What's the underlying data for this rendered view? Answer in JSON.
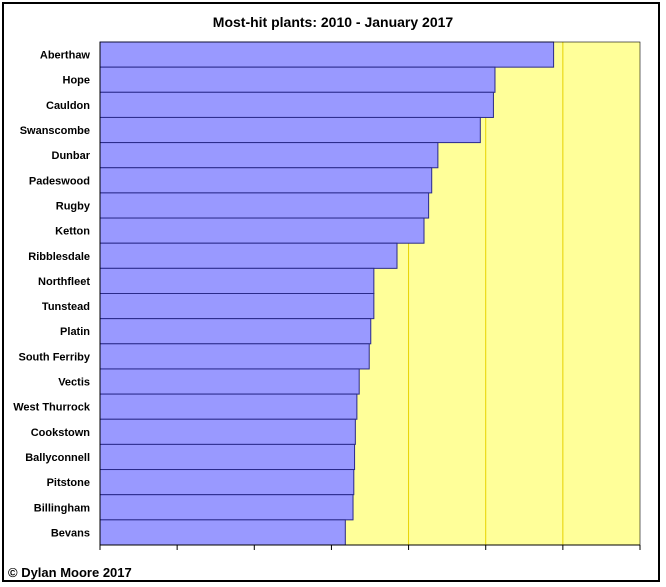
{
  "chart_data": {
    "type": "bar",
    "orientation": "horizontal",
    "title": "Most-hit plants: 2010 - January 2017",
    "categories": [
      "Aberthaw",
      "Hope",
      "Cauldon",
      "Swanscombe",
      "Dunbar",
      "Padeswood",
      "Rugby",
      "Ketton",
      "Ribblesdale",
      "Northfleet",
      "Tunstead",
      "Platin",
      "South Ferriby",
      "Vectis",
      "West Thurrock",
      "Cookstown",
      "Ballyconnell",
      "Pitstone",
      "Billingham",
      "Bevans"
    ],
    "values": [
      58.8,
      51.2,
      51.0,
      49.3,
      43.8,
      43.0,
      42.6,
      42.0,
      38.5,
      35.5,
      35.5,
      35.1,
      34.9,
      33.6,
      33.3,
      33.1,
      33.0,
      32.9,
      32.8,
      31.8
    ],
    "xlim": [
      0,
      70
    ],
    "xticks": [
      0,
      10,
      20,
      30,
      40,
      50,
      60,
      70
    ],
    "tick_labels_shown": false,
    "grid": true,
    "bar_color": "#9999ff",
    "plot_bg": "#ffff99",
    "grid_color": "#e6d200"
  },
  "footer": "© Dylan Moore 2017"
}
